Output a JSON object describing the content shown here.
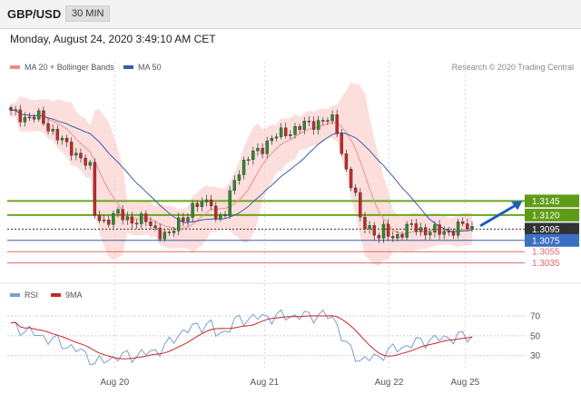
{
  "header": {
    "symbol": "GBP/USD",
    "timeframe": "30 MIN"
  },
  "datetime": "Monday, August 24, 2020 3:49:10 AM CET",
  "credit": "Research © 2020 Trading Central",
  "colors": {
    "bullish_candle": "#2e8b2e",
    "bearish_candle": "#c62828",
    "bollinger_fill": "#fbd4d2",
    "ma20": "#f08c8c",
    "ma50": "#3a5fa8",
    "resistance": "#6aa51f",
    "support": "#3a5fa8",
    "support_extra": "#e06a6a",
    "last_price": "#333333",
    "rsi": "#7b9fd0",
    "rsi_ma": "#c62828",
    "arrow": "#1f5cb8"
  },
  "chart_data": [
    {
      "type": "candlestick",
      "name": "price",
      "legend": [
        {
          "label": "MA 20 + Bollinger Bands",
          "color": "#f08c8c"
        },
        {
          "label": "MA 50",
          "color": "#3a5fa8"
        }
      ],
      "x_ticks": [
        "Aug 20",
        "Aug 21",
        "Aug 22",
        "Aug 25"
      ],
      "x_tick_positions": [
        22.5,
        55,
        82,
        98.5
      ],
      "n_bars": 100,
      "ylim": [
        1.3015,
        1.336
      ],
      "path_points": [
        [
          0,
          1.33
        ],
        [
          3,
          1.3295
        ],
        [
          6,
          1.3292
        ],
        [
          9,
          1.327
        ],
        [
          12,
          1.324
        ],
        [
          15,
          1.3225
        ],
        [
          17,
          1.32
        ],
        [
          18,
          1.312
        ],
        [
          20,
          1.311
        ],
        [
          23,
          1.312
        ],
        [
          26,
          1.3112
        ],
        [
          29,
          1.3108
        ],
        [
          32,
          1.309
        ],
        [
          34,
          1.308
        ],
        [
          36,
          1.311
        ],
        [
          39,
          1.313
        ],
        [
          42,
          1.3145
        ],
        [
          43,
          1.315
        ],
        [
          44,
          1.311
        ],
        [
          46,
          1.312
        ],
        [
          48,
          1.319
        ],
        [
          51,
          1.322
        ],
        [
          55,
          1.325
        ],
        [
          59,
          1.3268
        ],
        [
          63,
          1.3278
        ],
        [
          67,
          1.329
        ],
        [
          69,
          1.3285
        ],
        [
          70,
          1.327
        ],
        [
          72,
          1.32
        ],
        [
          74,
          1.315
        ],
        [
          75,
          1.311
        ],
        [
          77,
          1.31
        ],
        [
          79,
          1.308
        ],
        [
          80,
          1.309
        ],
        [
          82,
          1.3082
        ],
        [
          84,
          1.309
        ],
        [
          86,
          1.3098
        ],
        [
          88,
          1.3095
        ],
        [
          90,
          1.3092
        ],
        [
          92,
          1.3088
        ],
        [
          94,
          1.3092
        ],
        [
          96,
          1.31
        ],
        [
          98,
          1.3098
        ],
        [
          99,
          1.3095
        ]
      ],
      "levels": [
        {
          "value": 1.3145,
          "label": "1.3145",
          "kind": "resistance"
        },
        {
          "value": 1.312,
          "label": "1.3120",
          "kind": "resistance"
        },
        {
          "value": 1.3095,
          "label": "1.3095",
          "kind": "last"
        },
        {
          "value": 1.3075,
          "label": "1.3075",
          "kind": "support"
        },
        {
          "value": 1.3055,
          "label": "1.3055",
          "kind": "support_extra"
        },
        {
          "value": 1.3035,
          "label": "1.3035",
          "kind": "support_extra"
        }
      ],
      "target_arrow": {
        "from": [
          100,
          1.3096
        ],
        "to": [
          112,
          1.3145
        ]
      }
    },
    {
      "type": "line",
      "name": "rsi-panel",
      "legend": [
        {
          "label": "RSI",
          "color": "#7b9fd0"
        },
        {
          "label": "9MA",
          "color": "#c62828"
        }
      ],
      "y_ticks": [
        70,
        50,
        30
      ],
      "ylim": [
        15,
        82
      ],
      "rsi_points": [
        [
          0,
          60
        ],
        [
          3,
          56
        ],
        [
          6,
          50
        ],
        [
          9,
          46
        ],
        [
          12,
          40
        ],
        [
          15,
          34
        ],
        [
          17,
          28
        ],
        [
          18,
          22
        ],
        [
          20,
          25
        ],
        [
          23,
          29
        ],
        [
          26,
          30
        ],
        [
          29,
          32
        ],
        [
          32,
          36
        ],
        [
          34,
          42
        ],
        [
          36,
          52
        ],
        [
          39,
          58
        ],
        [
          42,
          62
        ],
        [
          43,
          60
        ],
        [
          44,
          52
        ],
        [
          46,
          54
        ],
        [
          48,
          64
        ],
        [
          51,
          68
        ],
        [
          55,
          69
        ],
        [
          59,
          70
        ],
        [
          63,
          70
        ],
        [
          67,
          71
        ],
        [
          69,
          68
        ],
        [
          70,
          62
        ],
        [
          72,
          40
        ],
        [
          74,
          30
        ],
        [
          75,
          26
        ],
        [
          77,
          27
        ],
        [
          79,
          28
        ],
        [
          80,
          33
        ],
        [
          82,
          36
        ],
        [
          84,
          38
        ],
        [
          86,
          42
        ],
        [
          88,
          44
        ],
        [
          90,
          46
        ],
        [
          92,
          47
        ],
        [
          94,
          48
        ],
        [
          96,
          49
        ],
        [
          98,
          49
        ],
        [
          99,
          50
        ]
      ]
    }
  ]
}
